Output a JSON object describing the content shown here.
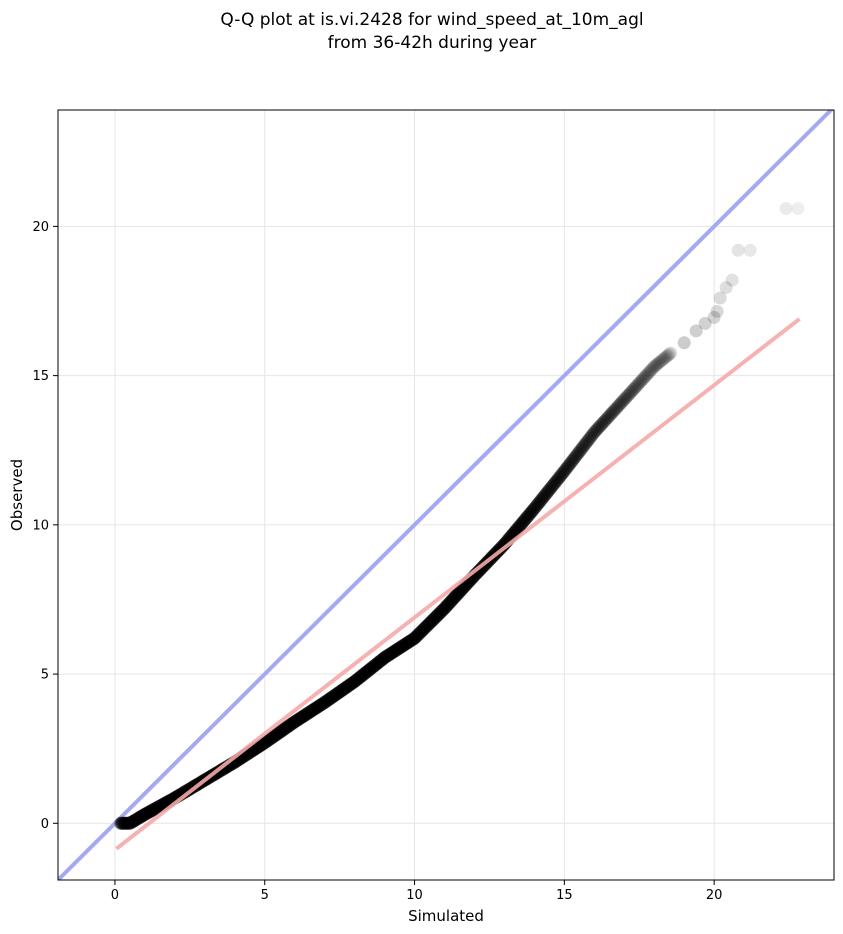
{
  "chart_data": {
    "type": "scatter",
    "title_line1": "Q-Q plot at is.vi.2428 for wind_speed_at_10m_agl",
    "title_line2": "from 36-42h during year",
    "xlabel": "Simulated",
    "ylabel": "Observed",
    "xlim": [
      -1.9,
      24
    ],
    "ylim": [
      -1.9,
      23.9
    ],
    "xticks": [
      0,
      5,
      10,
      15,
      20
    ],
    "yticks": [
      0,
      5,
      10,
      15,
      20
    ],
    "grid": true,
    "colors": {
      "identity_line": "#a6a8f2",
      "fit_line": "#f5a9a9",
      "points": "#000000"
    },
    "identity_line": {
      "from": [
        -1.9,
        -1.9
      ],
      "to": [
        24,
        24
      ]
    },
    "fit_line": {
      "from": [
        0.05,
        -0.85
      ],
      "to": [
        22.85,
        16.9
      ]
    },
    "quantile_curve": [
      [
        0.2,
        0.0
      ],
      [
        0.5,
        0.0
      ],
      [
        1.0,
        0.3
      ],
      [
        2.0,
        0.85
      ],
      [
        3.0,
        1.45
      ],
      [
        4.0,
        2.05
      ],
      [
        5.0,
        2.7
      ],
      [
        6.0,
        3.4
      ],
      [
        7.0,
        4.05
      ],
      [
        8.0,
        4.75
      ],
      [
        9.0,
        5.55
      ],
      [
        10.0,
        6.2
      ],
      [
        11.0,
        7.2
      ],
      [
        12.0,
        8.3
      ],
      [
        13.0,
        9.35
      ],
      [
        14.0,
        10.55
      ],
      [
        15.0,
        11.8
      ],
      [
        16.0,
        13.1
      ],
      [
        17.0,
        14.2
      ],
      [
        18.0,
        15.3
      ],
      [
        18.6,
        15.8
      ]
    ],
    "tail_points": [
      [
        19.0,
        16.1
      ],
      [
        19.4,
        16.5
      ],
      [
        19.7,
        16.75
      ],
      [
        20.0,
        16.95
      ],
      [
        20.1,
        17.15
      ],
      [
        20.2,
        17.6
      ],
      [
        20.4,
        17.95
      ],
      [
        20.6,
        18.2
      ],
      [
        20.8,
        19.2
      ],
      [
        21.2,
        19.2
      ],
      [
        22.4,
        20.6
      ],
      [
        22.8,
        20.6
      ]
    ]
  }
}
